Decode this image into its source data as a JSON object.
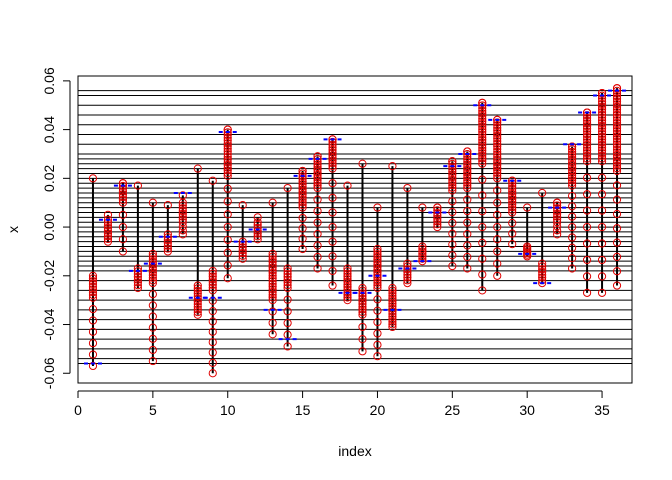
{
  "chart_data": {
    "type": "scatter",
    "title": "",
    "xlabel": "index",
    "ylabel": "x",
    "xlim": [
      0,
      37
    ],
    "ylim": [
      -0.064,
      0.062
    ],
    "x_ticks": [
      0,
      5,
      10,
      15,
      20,
      25,
      30,
      35
    ],
    "x_tick_labels": [
      "0",
      "5",
      "10",
      "15",
      "20",
      "25",
      "30",
      "35"
    ],
    "y_ticks": [
      -0.06,
      -0.04,
      -0.02,
      0.0,
      0.02,
      0.04,
      0.06
    ],
    "y_tick_labels": [
      "-0.06",
      "-0.04",
      "-0.02",
      "0.00",
      "0.02",
      "0.04",
      "0.06"
    ],
    "h_reference_lines": [
      -0.056,
      -0.054,
      -0.05,
      -0.046,
      -0.042,
      -0.038,
      -0.034,
      -0.03,
      -0.026,
      -0.022,
      -0.018,
      -0.016,
      -0.014,
      -0.012,
      -0.01,
      -0.008,
      -0.006,
      -0.004,
      -0.002,
      0.0,
      0.002,
      0.004,
      0.006,
      0.008,
      0.01,
      0.012,
      0.014,
      0.016,
      0.018,
      0.02,
      0.022,
      0.024,
      0.026,
      0.028,
      0.03,
      0.034,
      0.038,
      0.042,
      0.046,
      0.05,
      0.054,
      0.056
    ],
    "colors": {
      "points": "#e00000",
      "segments": "#000000",
      "markers": "#0000ff",
      "ref_lines": "#000000"
    },
    "groups": [
      {
        "index": 1,
        "low": -0.057,
        "high": 0.02,
        "cluster": [
          -0.029,
          -0.02
        ],
        "sparse_to": -0.057,
        "marker": -0.056
      },
      {
        "index": 2,
        "low": -0.006,
        "high": 0.005,
        "cluster": [
          -0.006,
          0.003
        ],
        "sparse_to": -0.006,
        "marker": 0.003
      },
      {
        "index": 3,
        "low": -0.01,
        "high": 0.018,
        "cluster": [
          0.01,
          0.018
        ],
        "sparse_to": -0.01,
        "marker": 0.017
      },
      {
        "index": 4,
        "low": -0.025,
        "high": 0.017,
        "cluster": [
          -0.025,
          -0.017
        ],
        "sparse_to": -0.025,
        "marker": -0.018
      },
      {
        "index": 5,
        "low": -0.055,
        "high": 0.01,
        "cluster": [
          -0.023,
          -0.011
        ],
        "sparse_to": -0.055,
        "marker": -0.015
      },
      {
        "index": 6,
        "low": -0.01,
        "high": 0.009,
        "cluster": [
          -0.01,
          -0.003
        ],
        "sparse_to": -0.01,
        "marker": -0.004
      },
      {
        "index": 7,
        "low": -0.003,
        "high": 0.013,
        "cluster": [
          0.002,
          0.01
        ],
        "sparse_to": -0.003,
        "marker": 0.014
      },
      {
        "index": 8,
        "low": -0.036,
        "high": 0.024,
        "cluster": [
          -0.036,
          -0.024
        ],
        "sparse_to": -0.036,
        "marker": -0.029
      },
      {
        "index": 9,
        "low": -0.06,
        "high": 0.019,
        "cluster": [
          -0.026,
          -0.018
        ],
        "sparse_to": -0.06,
        "marker": -0.029
      },
      {
        "index": 10,
        "low": -0.021,
        "high": 0.04,
        "cluster": [
          0.021,
          0.04
        ],
        "sparse_to": -0.021,
        "marker": 0.039
      },
      {
        "index": 11,
        "low": -0.013,
        "high": 0.009,
        "cluster": [
          -0.013,
          -0.006
        ],
        "sparse_to": -0.013,
        "marker": -0.006
      },
      {
        "index": 12,
        "low": -0.005,
        "high": 0.004,
        "cluster": [
          -0.005,
          0.002
        ],
        "sparse_to": -0.005,
        "marker": -0.001
      },
      {
        "index": 13,
        "low": -0.044,
        "high": 0.01,
        "cluster": [
          -0.03,
          -0.011
        ],
        "sparse_to": -0.044,
        "marker": -0.034
      },
      {
        "index": 14,
        "low": -0.049,
        "high": 0.016,
        "cluster": [
          -0.025,
          -0.017
        ],
        "sparse_to": -0.049,
        "marker": -0.046
      },
      {
        "index": 15,
        "low": -0.009,
        "high": 0.023,
        "cluster": [
          0.008,
          0.023
        ],
        "sparse_to": -0.009,
        "marker": 0.021
      },
      {
        "index": 16,
        "low": -0.017,
        "high": 0.029,
        "cluster": [
          0.016,
          0.029
        ],
        "sparse_to": -0.017,
        "marker": 0.028
      },
      {
        "index": 17,
        "low": -0.024,
        "high": 0.036,
        "cluster": [
          0.024,
          0.036
        ],
        "sparse_to": -0.024,
        "marker": 0.036
      },
      {
        "index": 18,
        "low": -0.03,
        "high": 0.017,
        "cluster": [
          -0.03,
          -0.017
        ],
        "sparse_to": -0.03,
        "marker": -0.027
      },
      {
        "index": 19,
        "low": -0.051,
        "high": 0.026,
        "cluster": [
          -0.036,
          -0.025
        ],
        "sparse_to": -0.051,
        "marker": -0.027
      },
      {
        "index": 20,
        "low": -0.053,
        "high": 0.008,
        "cluster": [
          -0.025,
          -0.009
        ],
        "sparse_to": -0.053,
        "marker": -0.02
      },
      {
        "index": 21,
        "low": -0.041,
        "high": 0.025,
        "cluster": [
          -0.041,
          -0.025
        ],
        "sparse_to": -0.041,
        "marker": -0.034
      },
      {
        "index": 22,
        "low": -0.023,
        "high": 0.016,
        "cluster": [
          -0.023,
          -0.015
        ],
        "sparse_to": -0.023,
        "marker": -0.017
      },
      {
        "index": 23,
        "low": -0.014,
        "high": 0.008,
        "cluster": [
          -0.014,
          -0.008
        ],
        "sparse_to": -0.014,
        "marker": -0.014
      },
      {
        "index": 24,
        "low": 0.0,
        "high": 0.008,
        "cluster": [
          0.0,
          0.008
        ],
        "sparse_to": 0.0,
        "marker": 0.006
      },
      {
        "index": 25,
        "low": -0.016,
        "high": 0.027,
        "cluster": [
          0.015,
          0.027
        ],
        "sparse_to": -0.016,
        "marker": 0.025
      },
      {
        "index": 26,
        "low": -0.017,
        "high": 0.031,
        "cluster": [
          0.016,
          0.031
        ],
        "sparse_to": -0.017,
        "marker": 0.03
      },
      {
        "index": 27,
        "low": -0.026,
        "high": 0.051,
        "cluster": [
          0.026,
          0.051
        ],
        "sparse_to": -0.026,
        "marker": 0.05
      },
      {
        "index": 28,
        "low": -0.02,
        "high": 0.044,
        "cluster": [
          0.02,
          0.044
        ],
        "sparse_to": -0.02,
        "marker": 0.044
      },
      {
        "index": 29,
        "low": -0.007,
        "high": 0.019,
        "cluster": [
          0.006,
          0.019
        ],
        "sparse_to": -0.007,
        "marker": 0.019
      },
      {
        "index": 30,
        "low": -0.012,
        "high": 0.008,
        "cluster": [
          -0.012,
          -0.008
        ],
        "sparse_to": -0.012,
        "marker": -0.011
      },
      {
        "index": 31,
        "low": -0.023,
        "high": 0.014,
        "cluster": [
          -0.023,
          -0.015
        ],
        "sparse_to": -0.023,
        "marker": -0.023
      },
      {
        "index": 32,
        "low": -0.003,
        "high": 0.01,
        "cluster": [
          0.002,
          0.01
        ],
        "sparse_to": -0.003,
        "marker": 0.008
      },
      {
        "index": 33,
        "low": -0.017,
        "high": 0.033,
        "cluster": [
          0.017,
          0.033
        ],
        "sparse_to": -0.017,
        "marker": 0.034
      },
      {
        "index": 34,
        "low": -0.027,
        "high": 0.047,
        "cluster": [
          0.027,
          0.047
        ],
        "sparse_to": -0.027,
        "marker": 0.047
      },
      {
        "index": 35,
        "low": -0.027,
        "high": 0.055,
        "cluster": [
          0.027,
          0.055
        ],
        "sparse_to": -0.027,
        "marker": 0.054
      },
      {
        "index": 36,
        "low": -0.024,
        "high": 0.057,
        "cluster": [
          0.023,
          0.057
        ],
        "sparse_to": -0.024,
        "marker": 0.056
      }
    ]
  }
}
